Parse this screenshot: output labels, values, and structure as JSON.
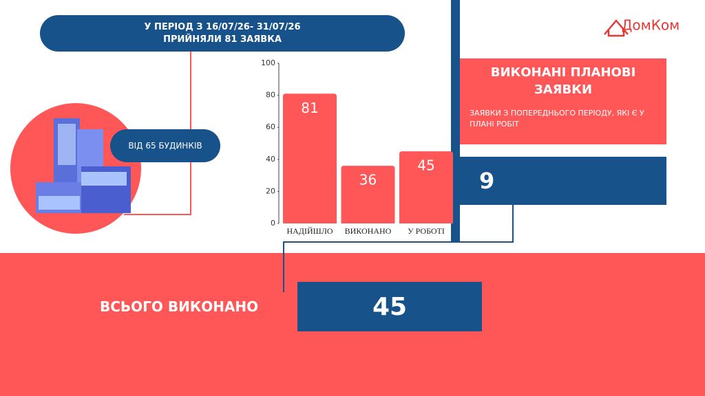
{
  "header": {
    "lines": [
      "У ПЕРІОД З 16/07/26- 31/07/26",
      "ПРИЙНЯЛИ 81 ЗАЯВКА"
    ]
  },
  "logo": "ДомКом",
  "badge": "ВІД 65 БУДИНКІВ",
  "chart_data": {
    "type": "bar",
    "categories": [
      "НАДІЙШЛО",
      "ВИКОНАНО",
      "У РОБОТІ"
    ],
    "values": [
      81,
      36,
      45
    ],
    "color": "#ff5757",
    "ylim": [
      0,
      100
    ],
    "yticks": [
      0,
      20,
      40,
      60,
      80,
      100
    ]
  },
  "planned": {
    "title": "ВИКОНАНІ ПЛАНОВІ ЗАЯВКИ",
    "subtitle": "ЗАЯВКИ З ПОПЕРЕДНЬОГО ПЕРІОДУ, ЯКІ Є У ПЛАНІ РОБІТ",
    "value": 9
  },
  "total": {
    "label": "ВСЬОГО ВИКОНАНО",
    "value": 45
  }
}
